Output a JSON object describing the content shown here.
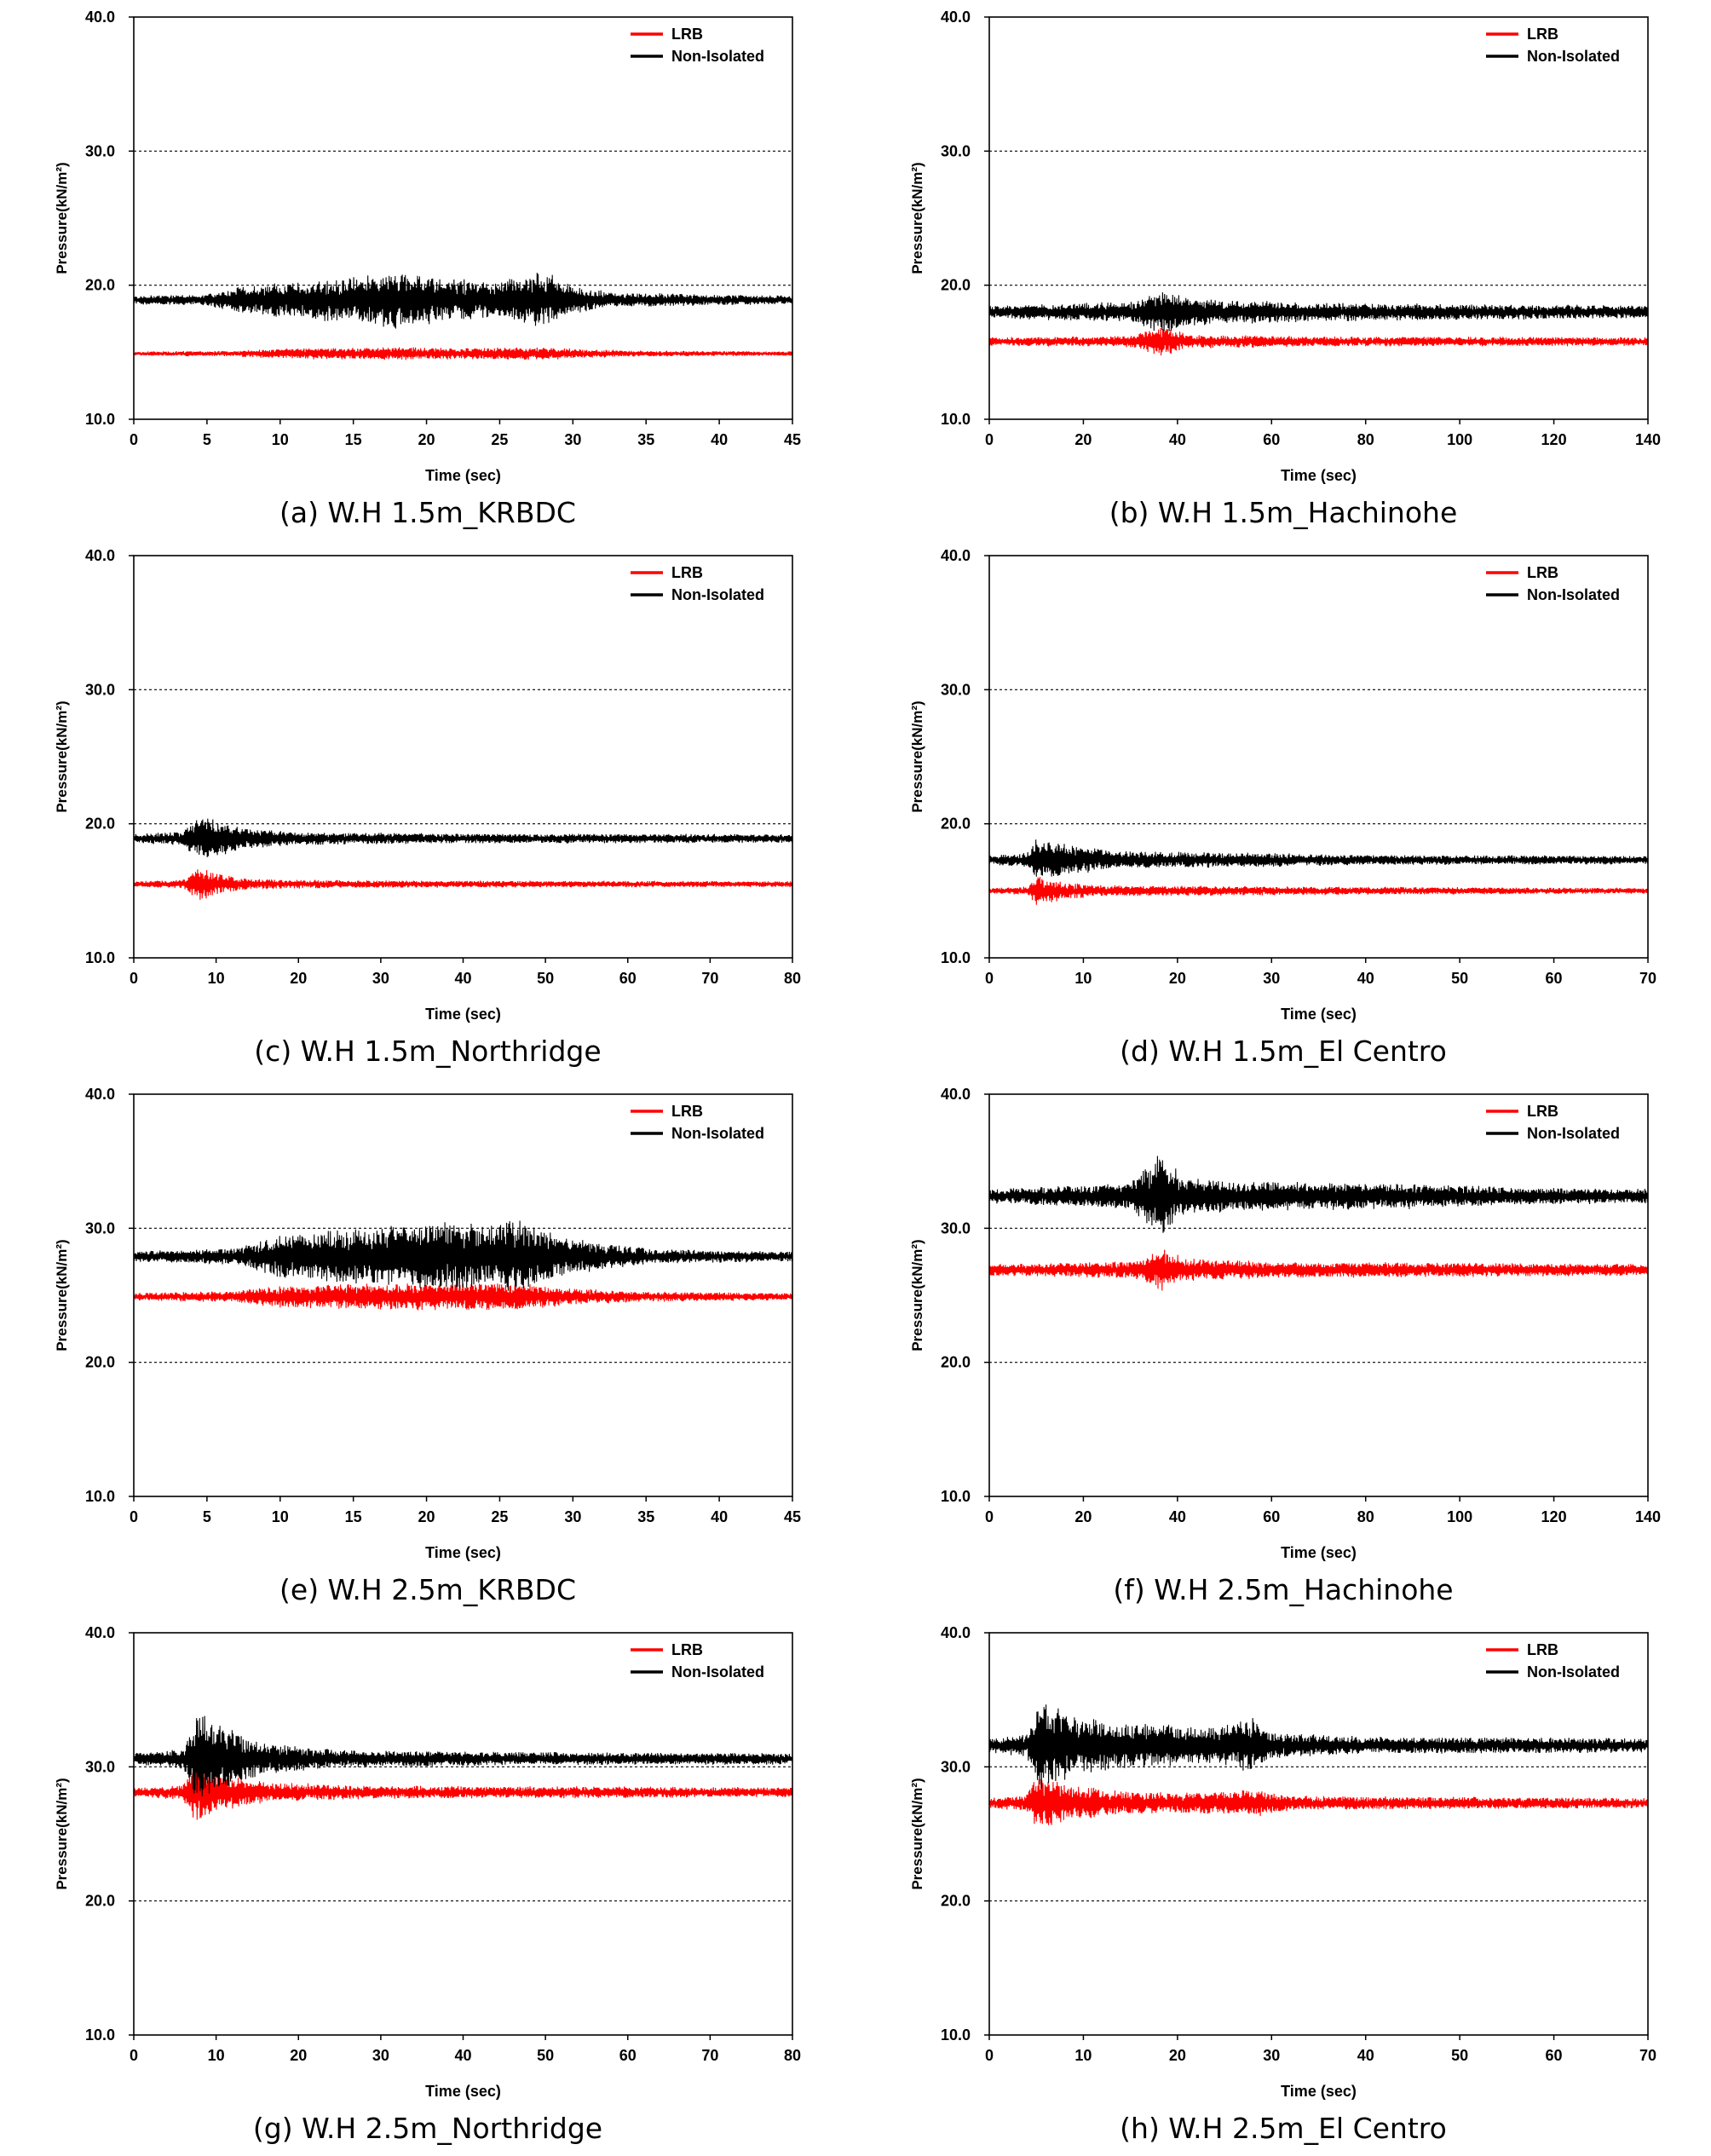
{
  "colors": {
    "LRB": "#ff0000",
    "Non-Isolated": "#000000"
  },
  "chart_data": [
    {
      "type": "line",
      "caption": "(a) W.H 1.5m_KRBDC",
      "xlabel": "Time (sec)",
      "ylabel": "Pressure(kN/m²)",
      "xlim": [
        0,
        45
      ],
      "xticks": [
        0,
        5,
        10,
        15,
        20,
        25,
        30,
        35,
        40,
        45
      ],
      "xtick_labels": [
        "0",
        "5",
        "10",
        "15",
        "20",
        "25",
        "30",
        "35",
        "40",
        "45"
      ],
      "ylim": [
        10,
        40
      ],
      "yticks": [
        10,
        20,
        30,
        40
      ],
      "ytick_labels": [
        "10.0",
        "20.0",
        "30.0",
        "40.0"
      ],
      "grid_y": [
        20,
        30
      ],
      "legend": {
        "position": "top-right",
        "entries": [
          "LRB",
          "Non-Isolated"
        ]
      },
      "series": [
        {
          "name": "LRB",
          "baseline": 14.9,
          "envelope": [
            [
              0,
              0.15
            ],
            [
              7,
              0.2
            ],
            [
              10,
              0.35
            ],
            [
              18,
              0.45
            ],
            [
              22,
              0.4
            ],
            [
              28,
              0.45
            ],
            [
              31,
              0.3
            ],
            [
              35,
              0.2
            ],
            [
              45,
              0.15
            ]
          ]
        },
        {
          "name": "Non-Isolated",
          "baseline": 18.9,
          "envelope": [
            [
              0,
              0.3
            ],
            [
              5,
              0.4
            ],
            [
              7,
              0.9
            ],
            [
              10,
              1.2
            ],
            [
              15,
              1.6
            ],
            [
              18,
              2.0
            ],
            [
              22,
              1.5
            ],
            [
              25,
              1.3
            ],
            [
              28,
              2.0
            ],
            [
              30,
              1.0
            ],
            [
              33,
              0.5
            ],
            [
              45,
              0.3
            ]
          ]
        }
      ]
    },
    {
      "type": "line",
      "caption": "(b) W.H 1.5m_Hachinohe",
      "xlabel": "Time (sec)",
      "ylabel": "Pressure(kN/m²)",
      "xlim": [
        0,
        140
      ],
      "xticks": [
        0,
        20,
        40,
        60,
        80,
        100,
        120,
        140
      ],
      "xtick_labels": [
        "0",
        "20",
        "40",
        "60",
        "80",
        "100",
        "120",
        "140"
      ],
      "ylim": [
        10,
        40
      ],
      "yticks": [
        10,
        20,
        30,
        40
      ],
      "ytick_labels": [
        "10.0",
        "20.0",
        "30.0",
        "40.0"
      ],
      "grid_y": [
        20,
        30
      ],
      "legend": {
        "position": "top-right",
        "entries": [
          "LRB",
          "Non-Isolated"
        ]
      },
      "series": [
        {
          "name": "LRB",
          "baseline": 15.8,
          "envelope": [
            [
              0,
              0.3
            ],
            [
              30,
              0.4
            ],
            [
              37,
              1.1
            ],
            [
              42,
              0.5
            ],
            [
              70,
              0.35
            ],
            [
              140,
              0.3
            ]
          ]
        },
        {
          "name": "Non-Isolated",
          "baseline": 18.0,
          "envelope": [
            [
              0,
              0.45
            ],
            [
              30,
              0.7
            ],
            [
              37,
              1.5
            ],
            [
              45,
              0.9
            ],
            [
              70,
              0.65
            ],
            [
              100,
              0.55
            ],
            [
              140,
              0.45
            ]
          ]
        }
      ]
    },
    {
      "type": "line",
      "caption": "(c) W.H 1.5m_Northridge",
      "xlabel": "Time (sec)",
      "ylabel": "Pressure(kN/m²)",
      "xlim": [
        0,
        80
      ],
      "xticks": [
        0,
        10,
        20,
        30,
        40,
        50,
        60,
        70,
        80
      ],
      "xtick_labels": [
        "0",
        "10",
        "20",
        "30",
        "40",
        "50",
        "60",
        "70",
        "80"
      ],
      "ylim": [
        10,
        40
      ],
      "yticks": [
        10,
        20,
        30,
        40
      ],
      "ytick_labels": [
        "10.0",
        "20.0",
        "30.0",
        "40.0"
      ],
      "grid_y": [
        20,
        30
      ],
      "legend": {
        "position": "top-right",
        "entries": [
          "LRB",
          "Non-Isolated"
        ]
      },
      "series": [
        {
          "name": "LRB",
          "baseline": 15.5,
          "envelope": [
            [
              0,
              0.2
            ],
            [
              6,
              0.3
            ],
            [
              8,
              1.2
            ],
            [
              11,
              0.6
            ],
            [
              15,
              0.35
            ],
            [
              30,
              0.25
            ],
            [
              80,
              0.2
            ]
          ]
        },
        {
          "name": "Non-Isolated",
          "baseline": 18.9,
          "envelope": [
            [
              0,
              0.3
            ],
            [
              6,
              0.5
            ],
            [
              8,
              1.7
            ],
            [
              11,
              1.1
            ],
            [
              14,
              0.7
            ],
            [
              20,
              0.45
            ],
            [
              40,
              0.35
            ],
            [
              80,
              0.3
            ]
          ]
        }
      ]
    },
    {
      "type": "line",
      "caption": "(d) W.H 1.5m_El Centro",
      "xlabel": "Time (sec)",
      "ylabel": "Pressure(kN/m²)",
      "xlim": [
        0,
        70
      ],
      "xticks": [
        0,
        10,
        20,
        30,
        40,
        50,
        60,
        70
      ],
      "xtick_labels": [
        "0",
        "10",
        "20",
        "30",
        "40",
        "50",
        "60",
        "70"
      ],
      "ylim": [
        10,
        40
      ],
      "yticks": [
        10,
        20,
        30,
        40
      ],
      "ytick_labels": [
        "10.0",
        "20.0",
        "30.0",
        "40.0"
      ],
      "grid_y": [
        20,
        30
      ],
      "legend": {
        "position": "top-right",
        "entries": [
          "LRB",
          "Non-Isolated"
        ]
      },
      "series": [
        {
          "name": "LRB",
          "baseline": 15.0,
          "envelope": [
            [
              0,
              0.2
            ],
            [
              4,
              0.3
            ],
            [
              5,
              1.0
            ],
            [
              8,
              0.6
            ],
            [
              12,
              0.4
            ],
            [
              30,
              0.3
            ],
            [
              70,
              0.2
            ]
          ]
        },
        {
          "name": "Non-Isolated",
          "baseline": 17.3,
          "envelope": [
            [
              0,
              0.3
            ],
            [
              4,
              0.5
            ],
            [
              5,
              1.5
            ],
            [
              8,
              1.1
            ],
            [
              14,
              0.6
            ],
            [
              28,
              0.5
            ],
            [
              40,
              0.35
            ],
            [
              70,
              0.3
            ]
          ]
        }
      ]
    },
    {
      "type": "line",
      "caption": "(e) W.H 2.5m_KRBDC",
      "xlabel": "Time (sec)",
      "ylabel": "Pressure(kN/m²)",
      "xlim": [
        0,
        45
      ],
      "xticks": [
        0,
        5,
        10,
        15,
        20,
        25,
        30,
        35,
        40,
        45
      ],
      "xtick_labels": [
        "0",
        "5",
        "10",
        "15",
        "20",
        "25",
        "30",
        "35",
        "40",
        "45"
      ],
      "ylim": [
        10,
        40
      ],
      "yticks": [
        10,
        20,
        30,
        40
      ],
      "ytick_labels": [
        "10.0",
        "20.0",
        "30.0",
        "40.0"
      ],
      "grid_y": [
        20,
        30
      ],
      "legend": {
        "position": "top-right",
        "entries": [
          "LRB",
          "Non-Isolated"
        ]
      },
      "series": [
        {
          "name": "LRB",
          "baseline": 24.9,
          "envelope": [
            [
              0,
              0.25
            ],
            [
              7,
              0.4
            ],
            [
              10,
              0.8
            ],
            [
              16,
              0.9
            ],
            [
              22,
              1.0
            ],
            [
              26,
              0.9
            ],
            [
              30,
              0.6
            ],
            [
              35,
              0.35
            ],
            [
              45,
              0.25
            ]
          ]
        },
        {
          "name": "Non-Isolated",
          "baseline": 27.9,
          "envelope": [
            [
              0,
              0.35
            ],
            [
              7,
              0.6
            ],
            [
              10,
              1.5
            ],
            [
              16,
              2.0
            ],
            [
              20,
              2.4
            ],
            [
              24,
              2.2
            ],
            [
              26,
              2.6
            ],
            [
              29,
              1.5
            ],
            [
              32,
              0.9
            ],
            [
              36,
              0.5
            ],
            [
              45,
              0.35
            ]
          ]
        }
      ]
    },
    {
      "type": "line",
      "caption": "(f) W.H 2.5m_Hachinohe",
      "xlabel": "Time (sec)",
      "ylabel": "Pressure(kN/m²)",
      "xlim": [
        0,
        140
      ],
      "xticks": [
        0,
        20,
        40,
        60,
        80,
        100,
        120,
        140
      ],
      "xtick_labels": [
        "0",
        "20",
        "40",
        "60",
        "80",
        "100",
        "120",
        "140"
      ],
      "ylim": [
        10,
        40
      ],
      "yticks": [
        10,
        20,
        30,
        40
      ],
      "ytick_labels": [
        "10.0",
        "20.0",
        "30.0",
        "40.0"
      ],
      "grid_y": [
        20,
        30
      ],
      "legend": {
        "position": "top-right",
        "entries": [
          "LRB",
          "Non-Isolated"
        ]
      },
      "series": [
        {
          "name": "LRB",
          "baseline": 26.9,
          "envelope": [
            [
              0,
              0.4
            ],
            [
              30,
              0.6
            ],
            [
              37,
              1.5
            ],
            [
              42,
              0.8
            ],
            [
              60,
              0.55
            ],
            [
              100,
              0.5
            ],
            [
              140,
              0.4
            ]
          ]
        },
        {
          "name": "Non-Isolated",
          "baseline": 32.4,
          "envelope": [
            [
              0,
              0.5
            ],
            [
              30,
              0.9
            ],
            [
              37,
              3.2
            ],
            [
              41,
              1.3
            ],
            [
              55,
              1.0
            ],
            [
              90,
              0.9
            ],
            [
              110,
              0.6
            ],
            [
              140,
              0.5
            ]
          ]
        }
      ]
    },
    {
      "type": "line",
      "caption": "(g) W.H 2.5m_Northridge",
      "xlabel": "Time (sec)",
      "ylabel": "Pressure(kN/m²)",
      "xlim": [
        0,
        80
      ],
      "xticks": [
        0,
        10,
        20,
        30,
        40,
        50,
        60,
        70,
        80
      ],
      "xtick_labels": [
        "0",
        "10",
        "20",
        "30",
        "40",
        "50",
        "60",
        "70",
        "80"
      ],
      "ylim": [
        10,
        40
      ],
      "yticks": [
        10,
        20,
        30,
        40
      ],
      "ytick_labels": [
        "10.0",
        "20.0",
        "30.0",
        "40.0"
      ],
      "grid_y": [
        20,
        30
      ],
      "legend": {
        "position": "top-right",
        "entries": [
          "LRB",
          "Non-Isolated"
        ]
      },
      "series": [
        {
          "name": "LRB",
          "baseline": 28.1,
          "envelope": [
            [
              0,
              0.3
            ],
            [
              6,
              0.5
            ],
            [
              7.5,
              2.3
            ],
            [
              11,
              1.3
            ],
            [
              16,
              0.7
            ],
            [
              30,
              0.45
            ],
            [
              80,
              0.35
            ]
          ]
        },
        {
          "name": "Non-Isolated",
          "baseline": 30.6,
          "envelope": [
            [
              0,
              0.4
            ],
            [
              6,
              0.7
            ],
            [
              8,
              3.5
            ],
            [
              11,
              2.2
            ],
            [
              15,
              1.2
            ],
            [
              25,
              0.6
            ],
            [
              50,
              0.45
            ],
            [
              80,
              0.4
            ]
          ]
        }
      ]
    },
    {
      "type": "line",
      "caption": "(h) W.H 2.5m_El Centro",
      "xlabel": "Time (sec)",
      "ylabel": "Pressure(kN/m²)",
      "xlim": [
        0,
        70
      ],
      "xticks": [
        0,
        10,
        20,
        30,
        40,
        50,
        60,
        70
      ],
      "xtick_labels": [
        "0",
        "10",
        "20",
        "30",
        "40",
        "50",
        "60",
        "70"
      ],
      "ylim": [
        10,
        40
      ],
      "yticks": [
        10,
        20,
        30,
        40
      ],
      "ytick_labels": [
        "10.0",
        "20.0",
        "30.0",
        "40.0"
      ],
      "grid_y": [
        20,
        30
      ],
      "legend": {
        "position": "top-right",
        "entries": [
          "LRB",
          "Non-Isolated"
        ]
      },
      "series": [
        {
          "name": "LRB",
          "baseline": 27.3,
          "envelope": [
            [
              0,
              0.35
            ],
            [
              4,
              0.6
            ],
            [
              5,
              2.0
            ],
            [
              8,
              1.3
            ],
            [
              13,
              0.9
            ],
            [
              20,
              0.7
            ],
            [
              29,
              0.9
            ],
            [
              32,
              0.5
            ],
            [
              70,
              0.35
            ]
          ]
        },
        {
          "name": "Non-Isolated",
          "baseline": 31.6,
          "envelope": [
            [
              0,
              0.5
            ],
            [
              4,
              0.8
            ],
            [
              5.5,
              3.2
            ],
            [
              9,
              2.0
            ],
            [
              13,
              1.7
            ],
            [
              18,
              1.5
            ],
            [
              24,
              1.2
            ],
            [
              28,
              1.9
            ],
            [
              30,
              0.9
            ],
            [
              40,
              0.6
            ],
            [
              70,
              0.5
            ]
          ]
        }
      ]
    }
  ]
}
